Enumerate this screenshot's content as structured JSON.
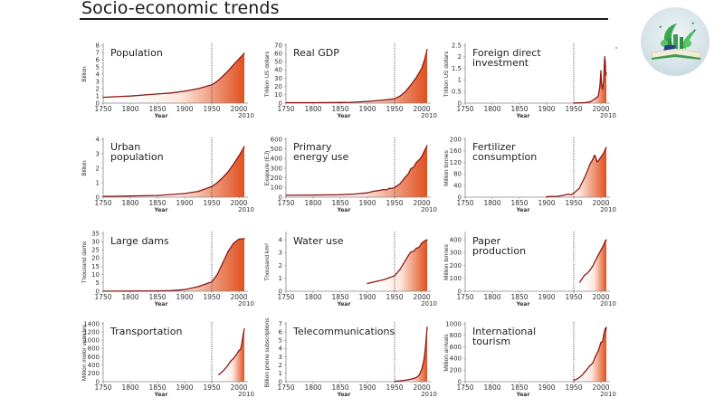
{
  "page": {
    "title": "Socio-economic trends",
    "logo_icon": "book-green-city-logo-icon"
  },
  "colors": {
    "line": "#8b1a1a",
    "fill_dark": "#e0501f",
    "fill_light": "#fde6dc",
    "axis": "#888888",
    "marker_1950": "#555555"
  },
  "chart_data": [
    {
      "type": "area",
      "title": "Population",
      "title_lines": [
        "Population"
      ],
      "xlabel": "Year",
      "ylabel": "Billion",
      "xlim": [
        1750,
        2010
      ],
      "ylim": [
        0,
        8
      ],
      "yticks": [
        0,
        1,
        2,
        3,
        4,
        5,
        6,
        7,
        8
      ],
      "xticks": [
        1750,
        1800,
        1850,
        1900,
        1950,
        2000
      ],
      "xticks_extra": "2010",
      "marker_year": 1950,
      "x": [
        1750,
        1800,
        1850,
        1875,
        1900,
        1925,
        1950,
        1960,
        1970,
        1980,
        1990,
        2000,
        2010
      ],
      "y": [
        0.8,
        0.98,
        1.26,
        1.4,
        1.65,
        2.0,
        2.52,
        3.02,
        3.7,
        4.44,
        5.3,
        6.1,
        6.9
      ]
    },
    {
      "type": "area",
      "title": "Real GDP",
      "title_lines": [
        "Real GDP"
      ],
      "xlabel": "Year",
      "ylabel": "Trillion US dollars",
      "xlim": [
        1750,
        2010
      ],
      "ylim": [
        0,
        70
      ],
      "yticks": [
        0,
        10,
        20,
        30,
        40,
        50,
        60,
        70
      ],
      "xticks": [
        1750,
        1800,
        1850,
        1900,
        1950,
        2000
      ],
      "xticks_extra": "2010",
      "marker_year": 1950,
      "x": [
        1750,
        1800,
        1850,
        1870,
        1900,
        1913,
        1930,
        1940,
        1950,
        1960,
        1970,
        1980,
        1990,
        2000,
        2005,
        2010
      ],
      "y": [
        0.5,
        0.6,
        0.8,
        1.0,
        2.0,
        2.7,
        3.7,
        4.5,
        5.3,
        8.5,
        14,
        22,
        31,
        42,
        52,
        65
      ]
    },
    {
      "type": "area",
      "title": "Foreign direct investment",
      "title_lines": [
        "Foreign direct",
        "investment"
      ],
      "xlabel": "Year",
      "ylabel": "Trillion US dollars",
      "xlim": [
        1750,
        2010
      ],
      "ylim": [
        0,
        2.5
      ],
      "yticks": [
        0,
        0.5,
        1,
        1.5,
        2,
        2.5
      ],
      "xticks": [
        1750,
        1800,
        1850,
        1900,
        1950,
        2000
      ],
      "xticks_extra": "2010",
      "marker_year": 1950,
      "x": [
        1950,
        1970,
        1980,
        1990,
        1995,
        1998,
        2000,
        2001,
        2003,
        2005,
        2007,
        2008,
        2009,
        2010
      ],
      "y": [
        0.0,
        0.02,
        0.05,
        0.2,
        0.3,
        0.7,
        1.4,
        0.8,
        0.6,
        1.0,
        2.0,
        1.8,
        1.2,
        1.3
      ]
    },
    {
      "type": "area",
      "title": "Urban population",
      "title_lines": [
        "Urban",
        "population"
      ],
      "xlabel": "Year",
      "ylabel": "Billion",
      "xlim": [
        1750,
        2010
      ],
      "ylim": [
        0,
        4
      ],
      "yticks": [
        0,
        1,
        2,
        3,
        4
      ],
      "xticks": [
        1750,
        1800,
        1850,
        1900,
        1950,
        2000
      ],
      "xticks_extra": "2010",
      "marker_year": 1950,
      "x": [
        1750,
        1800,
        1850,
        1900,
        1925,
        1950,
        1960,
        1970,
        1980,
        1990,
        2000,
        2010
      ],
      "y": [
        0.05,
        0.08,
        0.12,
        0.25,
        0.4,
        0.73,
        1.0,
        1.35,
        1.75,
        2.28,
        2.85,
        3.5
      ]
    },
    {
      "type": "area",
      "title": "Primary energy use",
      "title_lines": [
        "Primary",
        "energy use"
      ],
      "xlabel": "Year",
      "ylabel": "Exajoule (EJ)",
      "xlim": [
        1750,
        2010
      ],
      "ylim": [
        0,
        600
      ],
      "yticks": [
        0,
        100,
        200,
        300,
        400,
        500,
        600
      ],
      "xticks": [
        1750,
        1800,
        1850,
        1900,
        1950,
        2000
      ],
      "xticks_extra": "2010",
      "marker_year": 1950,
      "x": [
        1750,
        1800,
        1850,
        1875,
        1900,
        1910,
        1920,
        1930,
        1935,
        1940,
        1945,
        1950,
        1960,
        1970,
        1975,
        1980,
        1985,
        1990,
        1995,
        2000,
        2005,
        2010
      ],
      "y": [
        20,
        22,
        25,
        32,
        45,
        60,
        68,
        80,
        75,
        92,
        90,
        100,
        140,
        210,
        240,
        295,
        310,
        360,
        385,
        420,
        480,
        535
      ]
    },
    {
      "type": "area",
      "title": "Fertilizer consumption",
      "title_lines": [
        "Fertilizer",
        "consumption"
      ],
      "xlabel": "Year",
      "ylabel": "Million tonnes",
      "xlim": [
        1750,
        2010
      ],
      "ylim": [
        0,
        200
      ],
      "yticks": [
        0,
        40,
        80,
        120,
        160,
        200
      ],
      "xticks": [
        1750,
        1800,
        1850,
        1900,
        1950,
        2000
      ],
      "xticks_extra": "2010",
      "marker_year": 1950,
      "x": [
        1900,
        1920,
        1930,
        1935,
        1940,
        1945,
        1950,
        1960,
        1970,
        1975,
        1980,
        1985,
        1988,
        1990,
        1993,
        1995,
        2000,
        2005,
        2008,
        2010
      ],
      "y": [
        2,
        3,
        6,
        8,
        10,
        8,
        14,
        30,
        68,
        90,
        115,
        130,
        145,
        140,
        122,
        125,
        138,
        152,
        165,
        172
      ]
    },
    {
      "type": "area",
      "title": "Large dams",
      "title_lines": [
        "Large dams"
      ],
      "xlabel": "Year",
      "ylabel": "Thousand dams",
      "xlim": [
        1750,
        2010
      ],
      "ylim": [
        0,
        35
      ],
      "yticks": [
        0,
        5,
        10,
        15,
        20,
        25,
        30,
        35
      ],
      "xticks": [
        1750,
        1800,
        1850,
        1900,
        1950,
        2000
      ],
      "xticks_extra": "2010",
      "marker_year": 1950,
      "x": [
        1750,
        1800,
        1850,
        1875,
        1900,
        1925,
        1950,
        1960,
        1970,
        1980,
        1990,
        2000,
        2010
      ],
      "y": [
        0.05,
        0.1,
        0.2,
        0.4,
        1.0,
        2.8,
        5.7,
        10,
        17,
        24,
        29,
        31.5,
        31.8
      ]
    },
    {
      "type": "area",
      "title": "Water use",
      "title_lines": [
        "Water use"
      ],
      "xlabel": "Year",
      "ylabel": "Thousand km³",
      "xlim": [
        1750,
        2010
      ],
      "ylim": [
        0,
        4.5
      ],
      "yticks": [
        0,
        1,
        2,
        3,
        4
      ],
      "xticks": [
        1750,
        1800,
        1850,
        1900,
        1950,
        2000
      ],
      "xticks_extra": "2010",
      "marker_year": 1950,
      "x": [
        1900,
        1910,
        1920,
        1930,
        1940,
        1950,
        1960,
        1970,
        1975,
        1980,
        1985,
        1990,
        1995,
        2000,
        2005,
        2010
      ],
      "y": [
        0.6,
        0.7,
        0.8,
        0.9,
        1.05,
        1.2,
        1.7,
        2.4,
        2.75,
        3.05,
        3.1,
        3.35,
        3.4,
        3.75,
        3.9,
        4.0
      ]
    },
    {
      "type": "area",
      "title": "Paper production",
      "title_lines": [
        "Paper",
        "production"
      ],
      "xlabel": "Year",
      "ylabel": "Million tonnes",
      "xlim": [
        1750,
        2010
      ],
      "ylim": [
        0,
        450
      ],
      "yticks": [
        0,
        100,
        200,
        300,
        400
      ],
      "xticks": [
        1750,
        1800,
        1850,
        1900,
        1950,
        2000
      ],
      "xticks_extra": "2010",
      "marker_year": 1950,
      "x": [
        1961,
        1965,
        1970,
        1975,
        1980,
        1985,
        1990,
        1995,
        2000,
        2005,
        2008,
        2010
      ],
      "y": [
        70,
        95,
        125,
        140,
        165,
        195,
        240,
        280,
        320,
        360,
        390,
        400
      ]
    },
    {
      "type": "area",
      "title": "Transportation",
      "title_lines": [
        "Transportation"
      ],
      "xlabel": "Year",
      "ylabel": "Million motor vehicles",
      "xlim": [
        1750,
        2010
      ],
      "ylim": [
        0,
        1400
      ],
      "yticks": [
        0,
        200,
        400,
        600,
        800,
        1000,
        1200,
        1400
      ],
      "xticks": [
        1750,
        1800,
        1850,
        1900,
        1950,
        2000
      ],
      "xticks_extra": "2010",
      "marker_year": 1950,
      "x": [
        1963,
        1970,
        1975,
        1980,
        1985,
        1990,
        1995,
        2000,
        2003,
        2005,
        2008,
        2010
      ],
      "y": [
        170,
        250,
        320,
        400,
        500,
        560,
        650,
        750,
        780,
        900,
        1150,
        1280
      ]
    },
    {
      "type": "area",
      "title": "Telecommunications",
      "title_lines": [
        "Telecommunications"
      ],
      "xlabel": "Year",
      "ylabel": "Billion phone subscriptions",
      "xlim": [
        1750,
        2010
      ],
      "ylim": [
        0,
        7
      ],
      "yticks": [
        0,
        1,
        2,
        3,
        4,
        5,
        6,
        7
      ],
      "xticks": [
        1750,
        1800,
        1850,
        1900,
        1950,
        2000
      ],
      "xticks_extra": "2010",
      "marker_year": 1950,
      "x": [
        1950,
        1960,
        1970,
        1980,
        1985,
        1990,
        1995,
        2000,
        2003,
        2005,
        2007,
        2008,
        2010
      ],
      "y": [
        0.05,
        0.1,
        0.17,
        0.3,
        0.38,
        0.5,
        0.75,
        1.5,
        2.3,
        3.0,
        4.2,
        5.0,
        6.6
      ]
    },
    {
      "type": "area",
      "title": "International tourism",
      "title_lines": [
        "International",
        "tourism"
      ],
      "xlabel": "Year",
      "ylabel": "Million arrivals",
      "xlim": [
        1750,
        2010
      ],
      "ylim": [
        0,
        1000
      ],
      "yticks": [
        0,
        200,
        400,
        600,
        800,
        1000
      ],
      "xticks": [
        1750,
        1800,
        1850,
        1900,
        1950,
        2000
      ],
      "xticks_extra": "2010",
      "marker_year": 1950,
      "x": [
        1950,
        1955,
        1960,
        1965,
        1970,
        1975,
        1980,
        1985,
        1990,
        1995,
        2000,
        2003,
        2005,
        2008,
        2009,
        2010
      ],
      "y": [
        25,
        40,
        70,
        110,
        165,
        220,
        280,
        320,
        440,
        530,
        680,
        690,
        800,
        920,
        880,
        940
      ]
    }
  ]
}
